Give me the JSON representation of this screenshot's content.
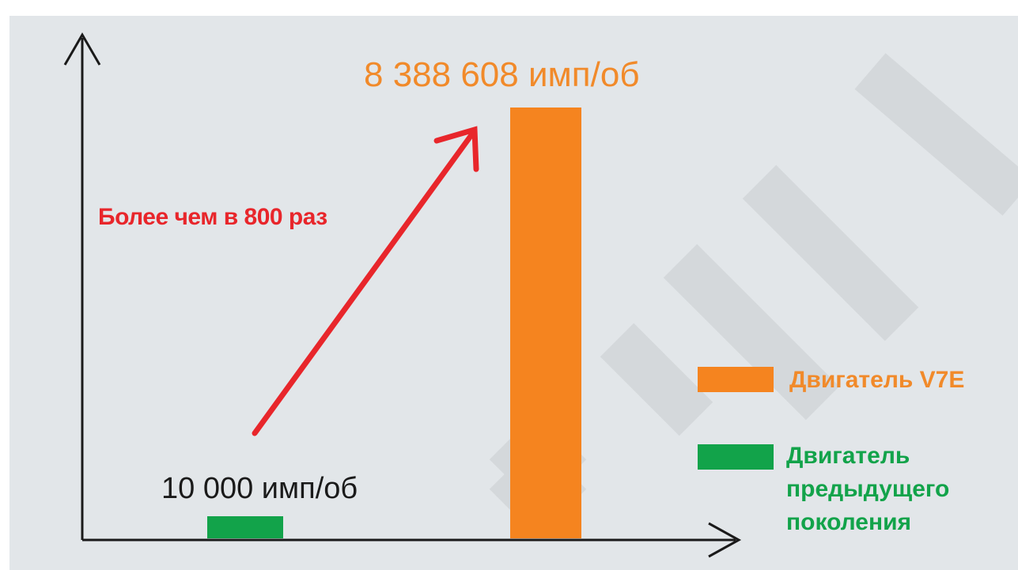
{
  "chart_data": {
    "type": "bar",
    "categories": [
      "Двигатель предыдущего поколения",
      "Двигатель V7E"
    ],
    "values": [
      10000,
      8388608
    ],
    "value_labels": [
      "10 000 имп/об",
      "8 388 608 имп/об"
    ],
    "annotation": "Более чем в 800 раз",
    "legend": [
      {
        "label": "Двигатель V7E",
        "color": "#f5841f"
      },
      {
        "label": "Двигатель предыдущего поколения",
        "color": "#12a34a"
      }
    ],
    "title": "",
    "xlabel": "",
    "ylabel": "",
    "grid": false,
    "legend_position": "right",
    "colors": {
      "v7e": "#f5841f",
      "v7e_text": "#f18a2a",
      "previous": "#12a34a",
      "annotation": "#e8262b",
      "axis": "#1a1a1a"
    }
  }
}
